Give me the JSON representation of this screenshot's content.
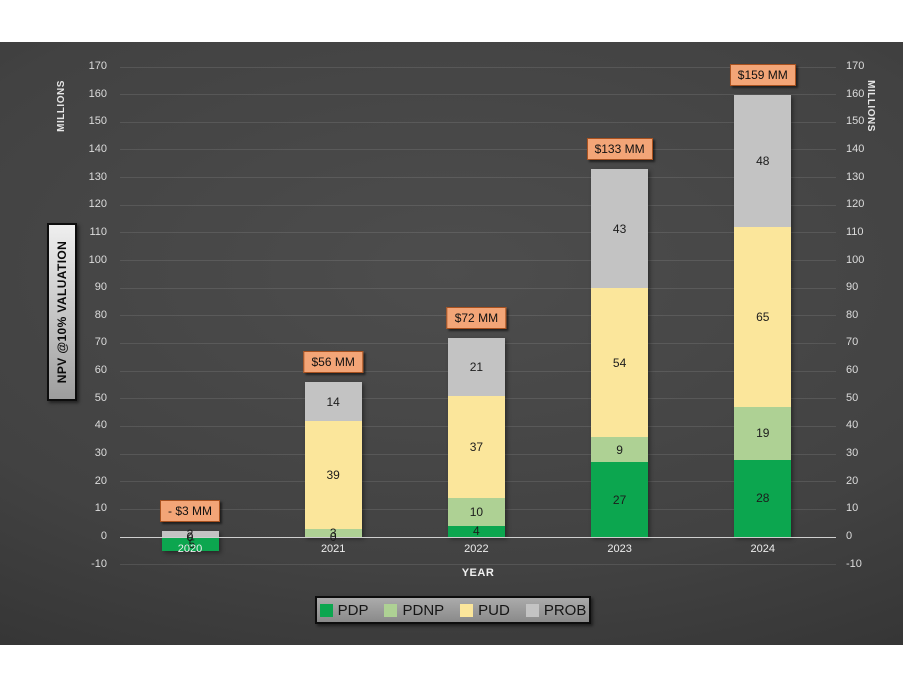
{
  "chart_data": {
    "type": "bar",
    "stacked": true,
    "categories": [
      "2020",
      "2021",
      "2022",
      "2023",
      "2024"
    ],
    "series": [
      {
        "name": "PDP",
        "color": "#0ca64f",
        "values": [
          -5,
          0,
          4,
          27,
          28
        ]
      },
      {
        "name": "PDNP",
        "color": "#aed194",
        "values": [
          0,
          3,
          10,
          9,
          19
        ]
      },
      {
        "name": "PUD",
        "color": "#fbe69b",
        "values": [
          0,
          39,
          37,
          54,
          65
        ]
      },
      {
        "name": "PROB",
        "color": "#c3c3c3",
        "values": [
          2,
          14,
          21,
          43,
          48
        ]
      }
    ],
    "total_labels": [
      "- $3 MM",
      "$56 MM",
      "$72 MM",
      "$133 MM",
      "$159 MM"
    ],
    "totals_mm": [
      -3,
      56,
      72,
      133,
      159
    ],
    "xlabel": "YEAR",
    "ylabel": "NPV  @10% VALUATION",
    "units_label": "MILLIONS",
    "ylim": [
      -10,
      170
    ],
    "ytick_step": 10,
    "grid": true,
    "legend_entries": [
      "PDP",
      "PDNP",
      "PUD",
      "PROB"
    ],
    "legend_position": "bottom"
  },
  "colors": {
    "annotation_fill": "#f3a577",
    "annotation_border": "#a8511f",
    "zero_line": "#cfcfcf",
    "axis_text": "#dcdcdc",
    "panel_background": "#3f3f3f"
  }
}
